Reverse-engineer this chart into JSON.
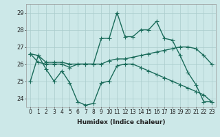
{
  "xlabel": "Humidex (Indice chaleur)",
  "x": [
    0,
    1,
    2,
    3,
    4,
    5,
    6,
    7,
    8,
    9,
    10,
    11,
    12,
    13,
    14,
    15,
    16,
    17,
    18,
    19,
    20,
    21,
    22,
    23
  ],
  "line1": [
    26.6,
    26.5,
    26.1,
    26.1,
    26.1,
    26.0,
    26.0,
    26.0,
    26.0,
    27.5,
    27.5,
    29.0,
    27.6,
    27.6,
    28.0,
    28.0,
    28.5,
    27.5,
    27.4,
    26.5,
    25.5,
    24.8,
    23.8,
    23.8
  ],
  "line2": [
    26.6,
    26.1,
    26.0,
    26.0,
    26.0,
    25.8,
    26.0,
    26.0,
    26.0,
    26.0,
    26.2,
    26.3,
    26.3,
    26.4,
    26.5,
    26.6,
    26.7,
    26.8,
    26.9,
    27.0,
    27.0,
    26.9,
    26.5,
    26.0
  ],
  "line3": [
    25.0,
    26.5,
    25.7,
    25.0,
    25.6,
    24.9,
    23.8,
    23.6,
    23.7,
    24.9,
    25.0,
    25.9,
    26.0,
    26.0,
    25.8,
    25.6,
    25.4,
    25.2,
    25.0,
    24.8,
    24.6,
    24.4,
    24.2,
    23.8
  ],
  "line_color": "#1a6b5a",
  "bg_color": "#cce8e8",
  "grid_color": "#aacccc",
  "ylim": [
    23.5,
    29.5
  ],
  "yticks": [
    24,
    25,
    26,
    27,
    28,
    29
  ],
  "xticks": [
    0,
    1,
    2,
    3,
    4,
    5,
    6,
    7,
    8,
    9,
    10,
    11,
    12,
    13,
    14,
    15,
    16,
    17,
    18,
    19,
    20,
    21,
    22,
    23
  ],
  "marker": "+",
  "linewidth": 1.0,
  "markersize": 4,
  "tick_fontsize": 5.5,
  "xlabel_fontsize": 6.5
}
